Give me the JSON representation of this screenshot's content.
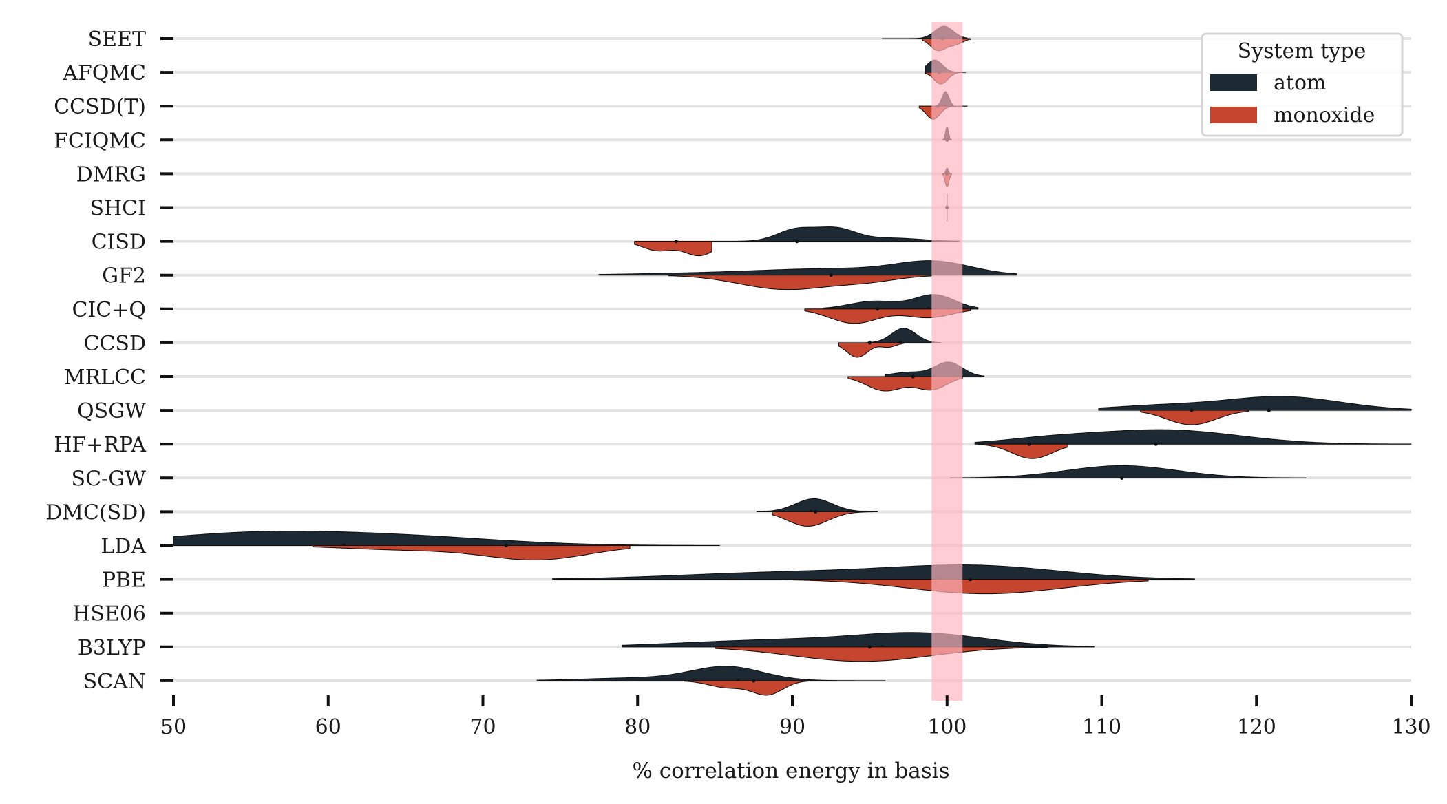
{
  "chart_data": {
    "type": "violin",
    "title": "",
    "xlabel": "% correlation energy in basis",
    "ylabel": "",
    "xlim": [
      50,
      130
    ],
    "xticks": [
      50,
      60,
      70,
      80,
      90,
      100,
      110,
      120,
      130
    ],
    "grid": "horizontal",
    "reference_band": [
      99,
      101
    ],
    "categories": [
      "SEET",
      "AFQMC",
      "CCSD(T)",
      "FCIQMC",
      "DMRG",
      "SHCI",
      "CISD",
      "GF2",
      "CIC+Q",
      "CCSD",
      "MRLCC",
      "QSGW",
      "HF+RPA",
      "SC-GW",
      "DMC(SD)",
      "LDA",
      "PBE",
      "HSE06",
      "B3LYP",
      "SCAN"
    ],
    "legend": {
      "title": "System type",
      "placement": "top-right",
      "entries": [
        "atom",
        "monoxide"
      ]
    },
    "colors": {
      "atom": "#1e2a33",
      "monoxide": "#c5452f",
      "band": "#ffb6be",
      "grid": "#e3e3e3"
    },
    "series": [
      {
        "name": "atom",
        "distributions": [
          {
            "category": "SEET",
            "range": [
              95.8,
              101.3
            ],
            "peaks": [
              [
                99.8,
                0.6,
                0.85
              ]
            ],
            "median": 99.7
          },
          {
            "category": "AFQMC",
            "range": [
              98.6,
              101.0
            ],
            "peaks": [
              [
                99.2,
                0.5,
                0.85
              ]
            ],
            "median": 99.4
          },
          {
            "category": "CCSD(T)",
            "range": [
              99.3,
              100.4
            ],
            "peaks": [
              [
                99.9,
                0.22,
                1.0
              ]
            ],
            "median": 99.8
          },
          {
            "category": "FCIQMC",
            "range": [
              99.7,
              100.3
            ],
            "peaks": [
              [
                100.0,
                0.1,
                0.9
              ]
            ],
            "median": 100.0
          },
          {
            "category": "DMRG",
            "range": [
              99.8,
              100.2
            ],
            "peaks": [
              [
                100.0,
                0.08,
                0.4
              ]
            ],
            "median": 100.0
          },
          {
            "category": "SHCI",
            "range": [
              99.95,
              100.05
            ],
            "peaks": [
              [
                100.0,
                0.02,
                0.02
              ]
            ],
            "median": 100.0
          },
          {
            "category": "CISD",
            "range": [
              84.8,
              100.8
            ],
            "peaks": [
              [
                90.2,
                1.2,
                0.9
              ],
              [
                92.8,
                1.3,
                1.0
              ],
              [
                96.5,
                1.8,
                0.25
              ]
            ],
            "median": 90.3
          },
          {
            "category": "GF2",
            "range": [
              77.5,
              104.5
            ],
            "peaks": [
              [
                99.2,
                2.4,
                0.85
              ],
              [
                93.0,
                4.8,
                0.45
              ],
              [
                84.0,
                5.0,
                0.12
              ]
            ],
            "median": 92.5
          },
          {
            "category": "CIC+Q",
            "range": [
              92.0,
              102.0
            ],
            "peaks": [
              [
                99.2,
                1.3,
                1.0
              ],
              [
                95.3,
                1.6,
                0.55
              ]
            ],
            "median": 98.8
          },
          {
            "category": "CCSD",
            "range": [
              94.8,
              99.6
            ],
            "peaks": [
              [
                97.2,
                0.8,
                1.0
              ]
            ],
            "median": 97.0
          },
          {
            "category": "MRLCC",
            "range": [
              96.0,
              102.4
            ],
            "peaks": [
              [
                100.1,
                0.9,
                1.0
              ],
              [
                97.5,
                1.1,
                0.3
              ]
            ],
            "median": 99.2
          },
          {
            "category": "QSGW",
            "range": [
              109.8,
              130.0
            ],
            "peaks": [
              [
                121.6,
                3.8,
                0.95
              ],
              [
                113.5,
                3.2,
                0.3
              ]
            ],
            "median": 120.8
          },
          {
            "category": "HF+RPA",
            "range": [
              101.8,
              130.0
            ],
            "peaks": [
              [
                114.0,
                4.8,
                1.0
              ],
              [
                106.5,
                3.0,
                0.3
              ]
            ],
            "median": 113.5
          },
          {
            "category": "SC-GW",
            "range": [
              100.2,
              123.2
            ],
            "peaks": [
              [
                111.3,
                3.6,
                0.85
              ]
            ],
            "median": 111.3
          },
          {
            "category": "DMC(SD)",
            "range": [
              87.7,
              95.2
            ],
            "peaks": [
              [
                91.4,
                1.2,
                0.9
              ]
            ],
            "median": 91.2
          },
          {
            "category": "LDA",
            "range": [
              50.0,
              85.3
            ],
            "peaks": [
              [
                55.5,
                6.5,
                1.0
              ],
              [
                66.0,
                6.0,
                0.55
              ]
            ],
            "median": 61.0
          },
          {
            "category": "PBE",
            "range": [
              74.5,
              116.0
            ],
            "peaks": [
              [
                102.0,
                5.5,
                1.0
              ],
              [
                90.0,
                7.0,
                0.55
              ]
            ],
            "median": 99.6
          },
          {
            "category": "B3LYP",
            "range": [
              79.0,
              109.5
            ],
            "peaks": [
              [
                98.5,
                4.2,
                1.0
              ],
              [
                89.0,
                6.0,
                0.55
              ]
            ],
            "median": 95.8
          },
          {
            "category": "SCAN",
            "range": [
              73.5,
              96.0
            ],
            "peaks": [
              [
                85.8,
                2.3,
                1.0
              ],
              [
                80.0,
                3.5,
                0.2
              ]
            ],
            "median": 86.5
          }
        ]
      },
      {
        "name": "monoxide",
        "distributions": [
          {
            "category": "SEET",
            "range": [
              98.4,
              101.5
            ],
            "peaks": [
              [
                99.4,
                0.5,
                0.8
              ],
              [
                100.5,
                0.5,
                0.4
              ]
            ],
            "median": 99.7
          },
          {
            "category": "AFQMC",
            "range": [
              98.6,
              101.2
            ],
            "peaks": [
              [
                99.6,
                0.45,
                0.8
              ]
            ],
            "median": 99.5
          },
          {
            "category": "CCSD(T)",
            "range": [
              98.2,
              101.3
            ],
            "peaks": [
              [
                99.1,
                0.45,
                0.9
              ]
            ],
            "median": 99.4
          },
          {
            "category": "FCIQMC",
            "range": [
              99.9,
              100.1
            ],
            "peaks": [
              [
                100.0,
                0.03,
                0.05
              ]
            ],
            "median": 100.0
          },
          {
            "category": "DMRG",
            "range": [
              99.7,
              100.3
            ],
            "peaks": [
              [
                100.0,
                0.12,
                0.9
              ]
            ],
            "median": 100.0
          },
          {
            "category": "SHCI",
            "range": [
              99.95,
              100.05
            ],
            "peaks": [
              [
                100.0,
                0.02,
                0.02
              ]
            ],
            "median": 100.0
          },
          {
            "category": "CISD",
            "range": [
              79.8,
              84.8
            ],
            "peaks": [
              [
                81.3,
                1.0,
                0.65
              ],
              [
                84.0,
                1.0,
                1.0
              ]
            ],
            "median": 82.5
          },
          {
            "category": "GF2",
            "range": [
              82.0,
              99.0
            ],
            "peaks": [
              [
                89.6,
                3.0,
                1.0
              ],
              [
                95.0,
                2.0,
                0.35
              ]
            ],
            "median": 92.5
          },
          {
            "category": "CIC+Q",
            "range": [
              90.8,
              101.5
            ],
            "peaks": [
              [
                94.0,
                1.6,
                1.0
              ],
              [
                98.8,
                1.5,
                0.6
              ]
            ],
            "median": 95.5
          },
          {
            "category": "CCSD",
            "range": [
              93.0,
              97.2
            ],
            "peaks": [
              [
                94.2,
                0.7,
                1.0
              ],
              [
                96.2,
                0.5,
                0.3
              ]
            ],
            "median": 95.0
          },
          {
            "category": "MRLCC",
            "range": [
              93.6,
              101.0
            ],
            "peaks": [
              [
                96.0,
                1.2,
                1.0
              ],
              [
                99.0,
                1.0,
                0.9
              ]
            ],
            "median": 97.8
          },
          {
            "category": "QSGW",
            "range": [
              112.5,
              119.5
            ],
            "peaks": [
              [
                115.8,
                1.6,
                1.0
              ]
            ],
            "median": 115.8
          },
          {
            "category": "HF+RPA",
            "range": [
              102.0,
              107.8
            ],
            "peaks": [
              [
                105.5,
                1.3,
                1.0
              ]
            ],
            "median": 105.3
          },
          {
            "category": "SC-GW",
            "range": [
              0,
              0
            ],
            "peaks": [],
            "median": null
          },
          {
            "category": "DMC(SD)",
            "range": [
              88.7,
              95.5
            ],
            "peaks": [
              [
                91.0,
                1.3,
                1.0
              ]
            ],
            "median": 91.5
          },
          {
            "category": "LDA",
            "range": [
              59.0,
              79.5
            ],
            "peaks": [
              [
                73.5,
                3.4,
                1.0
              ],
              [
                65.0,
                4.0,
                0.3
              ]
            ],
            "median": 71.5
          },
          {
            "category": "PBE",
            "range": [
              89.0,
              113.0
            ],
            "peaks": [
              [
                102.5,
                5.0,
                1.0
              ]
            ],
            "median": 101.5
          },
          {
            "category": "B3LYP",
            "range": [
              85.0,
              106.5
            ],
            "peaks": [
              [
                94.5,
                4.5,
                1.0
              ]
            ],
            "median": 95.0
          },
          {
            "category": "SCAN",
            "range": [
              83.0,
              91.0
            ],
            "peaks": [
              [
                88.4,
                1.0,
                1.0
              ],
              [
                85.8,
                1.2,
                0.5
              ]
            ],
            "median": 87.5
          }
        ]
      }
    ]
  }
}
